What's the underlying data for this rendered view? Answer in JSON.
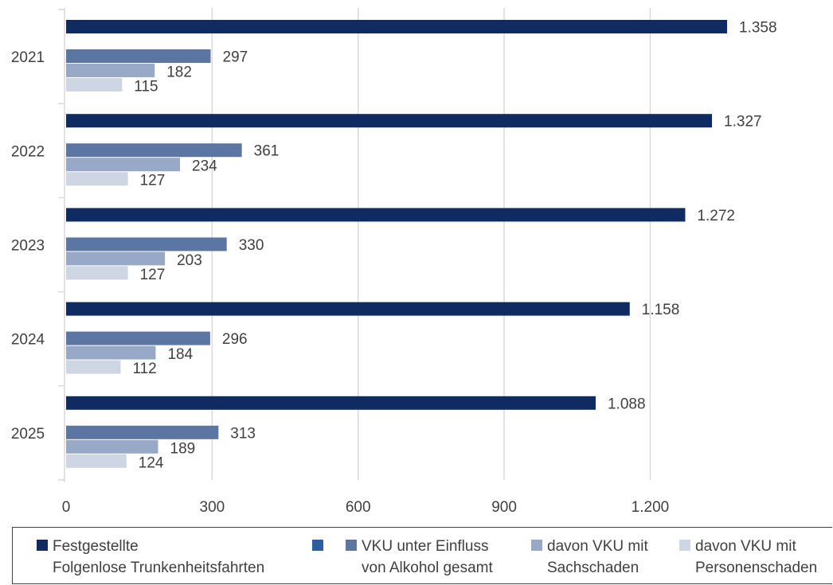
{
  "chart_data": {
    "type": "bar",
    "orientation": "horizontal",
    "categories": [
      "2021",
      "2022",
      "2023",
      "2024",
      "2025"
    ],
    "series": [
      {
        "name_lines": [
          "Festgestellte",
          "Folgenlose Trunkenheitsfahrten"
        ],
        "color": "#0f2b62",
        "values": [
          1358,
          1327,
          1272,
          1158,
          1088
        ],
        "labels": [
          "1.358",
          "1.327",
          "1.272",
          "1.158",
          "1.088"
        ]
      },
      {
        "name_lines": [
          "VKU unter Einfluss",
          "von Alkohol gesamt"
        ],
        "color": "#5b76a3",
        "values": [
          297,
          361,
          330,
          296,
          313
        ],
        "labels": [
          "297",
          "361",
          "330",
          "296",
          "313"
        ]
      },
      {
        "name_lines": [
          "davon VKU mit",
          "Sachschaden"
        ],
        "color": "#98a9c8",
        "values": [
          182,
          234,
          203,
          184,
          189
        ],
        "labels": [
          "182",
          "234",
          "203",
          "184",
          "189"
        ]
      },
      {
        "name_lines": [
          "davon VKU mit",
          "Personenschaden"
        ],
        "color": "#ced6e3",
        "values": [
          115,
          127,
          127,
          112,
          124
        ],
        "labels": [
          "115",
          "127",
          "127",
          "112",
          "124"
        ]
      }
    ],
    "xlim": [
      0,
      1500
    ],
    "x_ticks": [
      0,
      300,
      600,
      900,
      1200
    ],
    "x_tick_labels": [
      "0",
      "300",
      "600",
      "900",
      "1.200"
    ],
    "grid": true,
    "legend_position": "bottom",
    "legend_extra_marker_color": "#2e5f9c"
  }
}
